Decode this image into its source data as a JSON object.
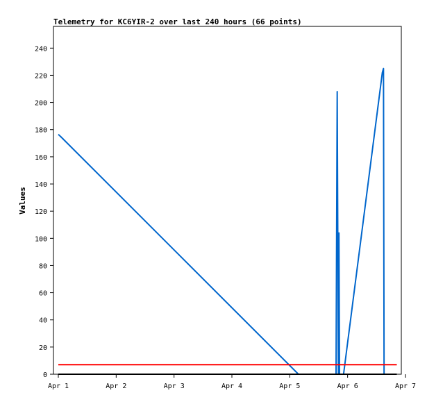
{
  "chart_data": {
    "type": "line",
    "title": "Telemetry for KC6YIR-2 over last 240 hours (66 points)",
    "ylabel": "Values",
    "xlabel": "",
    "x_tick_labels": [
      "Apr 1",
      "Apr 2",
      "Apr 3",
      "Apr 4",
      "Apr 5",
      "Apr 6",
      "Apr 7"
    ],
    "y_ticks": [
      0,
      20,
      40,
      60,
      80,
      100,
      120,
      140,
      160,
      180,
      200,
      220,
      240
    ],
    "xlim": [
      0,
      6
    ],
    "ylim": [
      0,
      256
    ],
    "grid": false,
    "series": [
      {
        "color": "#0066cc",
        "points": [
          [
            0.0,
            176.5
          ],
          [
            0.05,
            174.5
          ],
          [
            4.15,
            0
          ],
          [
            4.8,
            0
          ],
          [
            4.82,
            208
          ],
          [
            4.84,
            0
          ],
          [
            4.85,
            104
          ],
          [
            4.86,
            0
          ],
          [
            4.93,
            0
          ],
          [
            5.6,
            222
          ],
          [
            5.62,
            225
          ],
          [
            5.63,
            0
          ]
        ]
      },
      {
        "color": "#ff0000",
        "points": [
          [
            0.0,
            7
          ],
          [
            5.85,
            7
          ]
        ]
      },
      {
        "color": "#000000",
        "points": [
          [
            0.0,
            0
          ],
          [
            5.85,
            0
          ]
        ]
      }
    ]
  }
}
